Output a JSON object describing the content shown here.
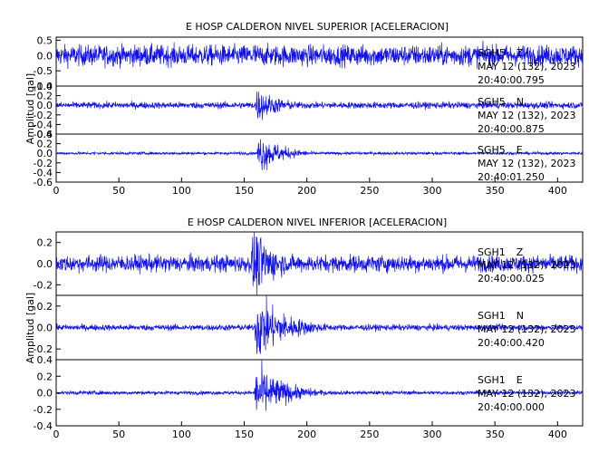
{
  "chart_data": [
    {
      "type": "line",
      "title": "E HOSP CALDERON NIVEL SUPERIOR [ACELERACION]",
      "ylabel": "Amplitud [gal]",
      "xlim": [
        0,
        420
      ],
      "xticks": [
        0,
        50,
        100,
        150,
        200,
        250,
        300,
        350,
        400
      ],
      "series": [
        {
          "name": "SGH5 Z",
          "station": "SGH5",
          "component": "Z",
          "date": "MAY 12 (132), 2023",
          "time": "20:40:00.795",
          "ylim": [
            -1.0,
            0.6
          ],
          "yticks": [
            0.5,
            0.0,
            -0.5,
            -1.0
          ],
          "ytick_labels": [
            "0.5",
            "0.0",
            "-0.5",
            "-1.0"
          ],
          "noise_amplitude": 0.3,
          "event_onset": 155,
          "event_peak": 0.45,
          "event_duration": 10
        },
        {
          "name": "SGH5 N",
          "station": "SGH5",
          "component": "N",
          "date": "MAY 12 (132), 2023",
          "time": "20:40:00.875",
          "ylim": [
            -0.6,
            0.4
          ],
          "yticks": [
            0.4,
            0.2,
            0.0,
            -0.2,
            -0.4,
            -0.6
          ],
          "ytick_labels": [
            "0.4",
            "0.2",
            "0.0",
            "-0.2",
            "-0.4",
            "-0.6"
          ],
          "noise_amplitude": 0.06,
          "event_onset": 158,
          "event_peak": 0.32,
          "event_duration": 20
        },
        {
          "name": "SGH5 E",
          "station": "SGH5",
          "component": "E",
          "date": "MAY 12 (132), 2023",
          "time": "20:40:01.250",
          "ylim": [
            -0.6,
            0.4
          ],
          "yticks": [
            0.4,
            0.2,
            0.0,
            -0.2,
            -0.4,
            -0.6
          ],
          "ytick_labels": [
            "0.4",
            "0.2",
            "0.0",
            "-0.2",
            "-0.4",
            "-0.6"
          ],
          "noise_amplitude": 0.025,
          "event_onset": 160,
          "event_peak": 0.38,
          "event_duration": 18
        }
      ]
    },
    {
      "type": "line",
      "title": "E HOSP CALDERON NIVEL INFERIOR [ACELERACION]",
      "ylabel": "Amplitud [gal]",
      "xlim": [
        0,
        420
      ],
      "xticks": [
        0,
        50,
        100,
        150,
        200,
        250,
        300,
        350,
        400
      ],
      "series": [
        {
          "name": "SGH1 Z",
          "station": "SGH1",
          "component": "Z",
          "date": "MAY 12 (132), 2023",
          "time": "20:40:00.025",
          "ylim": [
            -0.3,
            0.3
          ],
          "yticks": [
            0.2,
            0.0,
            -0.2
          ],
          "ytick_labels": [
            "0.2",
            "0.0",
            "-0.2"
          ],
          "noise_amplitude": 0.07,
          "event_onset": 155,
          "event_peak": 0.3,
          "event_duration": 20
        },
        {
          "name": "SGH1 N",
          "station": "SGH1",
          "component": "N",
          "date": "MAY 12 (132), 2023",
          "time": "20:40:00.420",
          "ylim": [
            -0.3,
            0.3
          ],
          "yticks": [
            0.2,
            0.0,
            -0.2
          ],
          "ytick_labels": [
            "0.2",
            "0.0",
            "-0.2"
          ],
          "noise_amplitude": 0.025,
          "event_onset": 158,
          "event_peak": 0.28,
          "event_duration": 25
        },
        {
          "name": "SGH1 E",
          "station": "SGH1",
          "component": "E",
          "date": "MAY 12 (132), 2023",
          "time": "20:40:00.000",
          "ylim": [
            -0.4,
            0.4
          ],
          "yticks": [
            0.4,
            0.2,
            0.0,
            -0.2,
            -0.4
          ],
          "ytick_labels": [
            "0.4",
            "0.2",
            "0.0",
            "-0.2",
            "-0.4"
          ],
          "noise_amplitude": 0.02,
          "event_onset": 158,
          "event_peak": 0.32,
          "event_duration": 22
        }
      ]
    }
  ],
  "colors": {
    "trace": "#1010ee",
    "axes": "#000000"
  }
}
